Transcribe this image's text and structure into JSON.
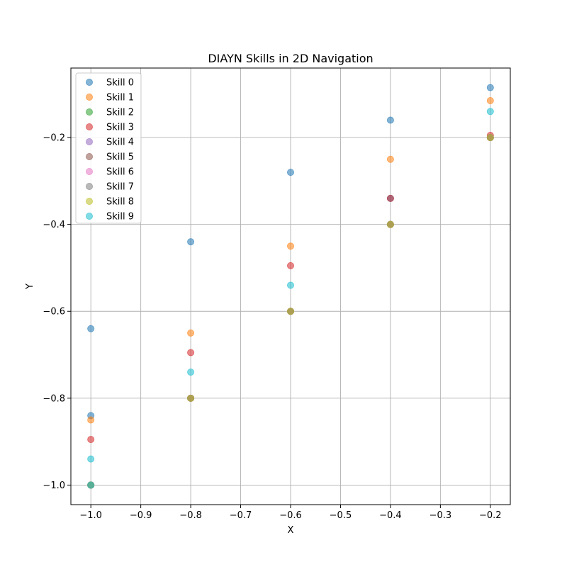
{
  "chart_data": {
    "type": "scatter",
    "title": "DIAYN Skills in 2D Navigation",
    "xlabel": "X",
    "ylabel": "Y",
    "xlim": [
      -1.04,
      -0.16
    ],
    "ylim": [
      -1.045,
      -0.04
    ],
    "xticks": [
      -1.0,
      -0.9,
      -0.8,
      -0.7,
      -0.6,
      -0.5,
      -0.4,
      -0.3,
      -0.2
    ],
    "xtick_labels": [
      "−1.0",
      "−0.9",
      "−0.8",
      "−0.7",
      "−0.6",
      "−0.5",
      "−0.4",
      "−0.3",
      "−0.2"
    ],
    "yticks": [
      -1.0,
      -0.8,
      -0.6,
      -0.4,
      -0.2
    ],
    "ytick_labels": [
      "−1.0",
      "−0.8",
      "−0.6",
      "−0.4",
      "−0.2"
    ],
    "grid": true,
    "legend_position": "top-left",
    "series": [
      {
        "name": "Skill 0",
        "color": "#1f77b4",
        "points": [
          [
            -1.0,
            -1.0
          ],
          [
            -1.0,
            -0.84
          ],
          [
            -1.0,
            -0.64
          ],
          [
            -0.8,
            -0.44
          ],
          [
            -0.6,
            -0.28
          ],
          [
            -0.4,
            -0.16
          ],
          [
            -0.4,
            -0.34
          ],
          [
            -0.2,
            -0.085
          ]
        ]
      },
      {
        "name": "Skill 1",
        "color": "#ff7f0e",
        "points": [
          [
            -1.0,
            -1.0
          ],
          [
            -1.0,
            -0.85
          ],
          [
            -0.8,
            -0.65
          ],
          [
            -0.6,
            -0.45
          ],
          [
            -0.4,
            -0.25
          ],
          [
            -0.2,
            -0.115
          ]
        ]
      },
      {
        "name": "Skill 2",
        "color": "#2ca02c",
        "points": [
          [
            -1.0,
            -1.0
          ],
          [
            -0.8,
            -0.8
          ],
          [
            -0.6,
            -0.6
          ],
          [
            -0.4,
            -0.4
          ],
          [
            -0.2,
            -0.2
          ]
        ]
      },
      {
        "name": "Skill 3",
        "color": "#d62728",
        "points": [
          [
            -1.0,
            -1.0
          ],
          [
            -1.0,
            -0.895
          ],
          [
            -0.8,
            -0.695
          ],
          [
            -0.6,
            -0.495
          ],
          [
            -0.4,
            -0.34
          ],
          [
            -0.2,
            -0.195
          ]
        ]
      },
      {
        "name": "Skill 4",
        "color": "#9467bd",
        "points": [
          [
            -1.0,
            -1.0
          ],
          [
            -0.8,
            -0.8
          ],
          [
            -0.6,
            -0.6
          ],
          [
            -0.4,
            -0.4
          ],
          [
            -0.2,
            -0.2
          ]
        ]
      },
      {
        "name": "Skill 5",
        "color": "#8c564b",
        "points": [
          [
            -1.0,
            -1.0
          ],
          [
            -0.8,
            -0.8
          ],
          [
            -0.6,
            -0.6
          ],
          [
            -0.4,
            -0.4
          ],
          [
            -0.2,
            -0.2
          ]
        ]
      },
      {
        "name": "Skill 6",
        "color": "#e377c2",
        "points": [
          [
            -1.0,
            -1.0
          ],
          [
            -0.8,
            -0.8
          ],
          [
            -0.6,
            -0.6
          ],
          [
            -0.4,
            -0.4
          ],
          [
            -0.2,
            -0.2
          ]
        ]
      },
      {
        "name": "Skill 7",
        "color": "#7f7f7f",
        "points": [
          [
            -1.0,
            -1.0
          ],
          [
            -0.8,
            -0.8
          ],
          [
            -0.6,
            -0.6
          ],
          [
            -0.4,
            -0.4
          ],
          [
            -0.2,
            -0.2
          ]
        ]
      },
      {
        "name": "Skill 8",
        "color": "#bcbd22",
        "points": [
          [
            -1.0,
            -1.0
          ],
          [
            -0.8,
            -0.8
          ],
          [
            -0.6,
            -0.6
          ],
          [
            -0.4,
            -0.4
          ],
          [
            -0.2,
            -0.2
          ]
        ]
      },
      {
        "name": "Skill 9",
        "color": "#17becf",
        "points": [
          [
            -1.0,
            -1.0
          ],
          [
            -1.0,
            -0.94
          ],
          [
            -0.8,
            -0.74
          ],
          [
            -0.6,
            -0.54
          ],
          [
            -0.2,
            -0.14
          ]
        ]
      }
    ]
  }
}
